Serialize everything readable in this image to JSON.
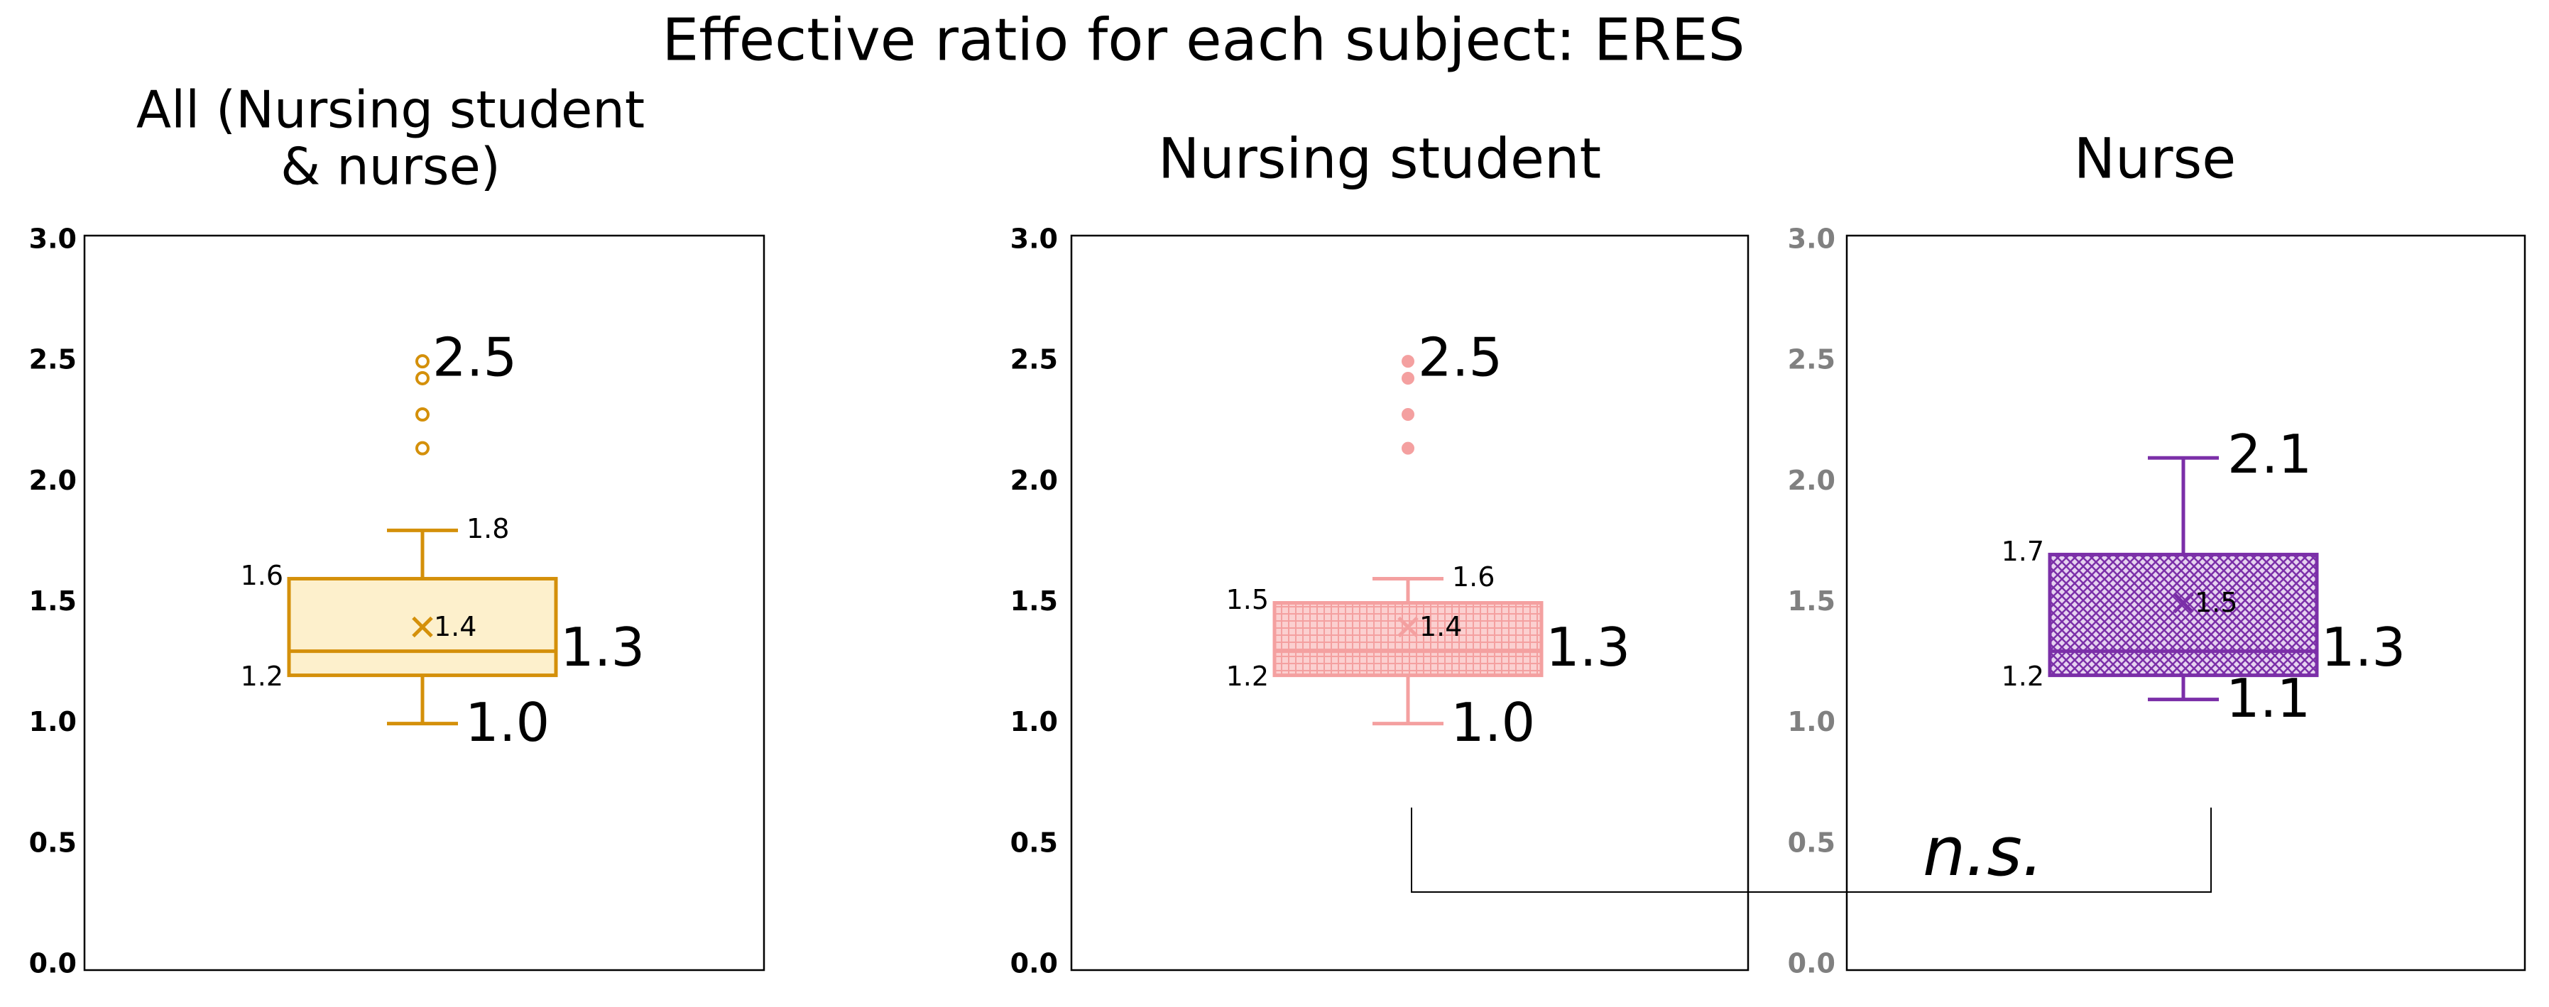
{
  "title": "Effective ratio for each subject: ERES",
  "annotation": "n.s.",
  "chart_data": [
    {
      "type": "box",
      "title": [
        "All (Nursing student",
        "& nurse)"
      ],
      "color": "#d4900a",
      "fill": "#fdf0cc",
      "hatch": "none",
      "outlier_style": "hollow",
      "tick_color": "#000000",
      "ylim": [
        0,
        3
      ],
      "yticks": [
        {
          "value": 0,
          "label": "0.0"
        },
        0.5,
        {
          "value": 1,
          "label": "1.0"
        },
        1.5,
        {
          "value": 2,
          "label": "2.0"
        },
        2.5,
        {
          "value": 3,
          "label": "3.0"
        }
      ],
      "grid": false,
      "stats": {
        "min": 1,
        "q1": 1.2,
        "median": 1.3,
        "q3": 1.6,
        "max": 1.8,
        "mean": 1.4
      },
      "stat_labels": {
        "min": "1.0"
      },
      "outliers": [
        2.5,
        2.43,
        2.28,
        2.14
      ]
    },
    {
      "type": "box",
      "title": "Nursing student",
      "color": "#f4a0a0",
      "fill": "#fbd0d0",
      "hatch": "dots",
      "outlier_style": "filled",
      "tick_color": "#000000",
      "ylim": [
        0,
        3
      ],
      "yticks": [
        {
          "value": 0,
          "label": "0.0"
        },
        0.5,
        {
          "value": 1,
          "label": "1.0"
        },
        1.5,
        {
          "value": 2,
          "label": "2.0"
        },
        2.5,
        {
          "value": 3,
          "label": "3.0"
        }
      ],
      "grid": false,
      "stats": {
        "min": 1,
        "q1": 1.2,
        "median": 1.3,
        "q3": 1.5,
        "max": 1.6,
        "mean": 1.4
      },
      "stat_labels": {
        "min": "1.0"
      },
      "outliers": [
        2.5,
        2.43,
        2.28,
        2.14
      ]
    },
    {
      "type": "box",
      "title": "Nurse",
      "color": "#7b2fa8",
      "fill": "#e6d3f0",
      "hatch": "cross",
      "outlier_style": "filled",
      "tick_color": "#808080",
      "ylim": [
        0,
        3
      ],
      "yticks": [
        {
          "value": 0,
          "label": "0.0"
        },
        0.5,
        {
          "value": 1,
          "label": "1.0"
        },
        1.5,
        {
          "value": 2,
          "label": "2.0"
        },
        2.5,
        {
          "value": 3,
          "label": "3.0"
        }
      ],
      "grid": false,
      "stats": {
        "min": 1.1,
        "q1": 1.2,
        "median": 1.3,
        "q3": 1.7,
        "max": 2.1,
        "mean": 1.5
      },
      "stat_labels": {},
      "outliers": []
    }
  ]
}
